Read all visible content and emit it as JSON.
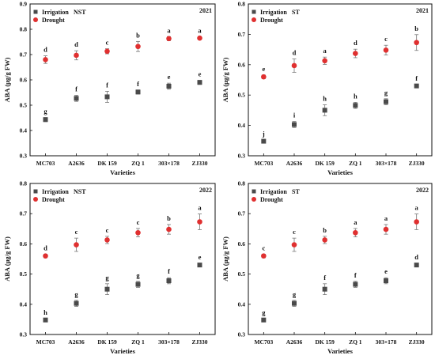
{
  "colors": {
    "irrigation": "#4a4a4a",
    "drought": "#e03030",
    "errorbar": "#777777"
  },
  "chart_data": [
    {
      "type": "scatter",
      "title": "2021",
      "subtitle": "NST",
      "xlabel": "Varieties",
      "ylabel": "ABA (μg/g FW)",
      "categories": [
        "MC703",
        "A2636",
        "DK 159",
        "ZQ 1",
        "303×178",
        "ZJ330"
      ],
      "ylim": [
        0.3,
        0.9
      ],
      "yticks": [
        "0.3",
        "0.4",
        "0.5",
        "0.6",
        "0.7",
        "0.8",
        "0.9"
      ],
      "grid": false,
      "legend_position": "top-left",
      "series": [
        {
          "name": "Irrigation",
          "values": [
            0.443,
            0.527,
            0.533,
            0.552,
            0.575,
            0.59
          ],
          "errors": [
            0.008,
            0.012,
            0.022,
            0.008,
            0.012,
            0.008
          ],
          "labels": [
            "g",
            "f",
            "f",
            "f",
            "e",
            "e"
          ]
        },
        {
          "name": "Drought",
          "values": [
            0.68,
            0.697,
            0.713,
            0.732,
            0.763,
            0.765
          ],
          "errors": [
            0.015,
            0.018,
            0.01,
            0.02,
            0.008,
            0.006
          ],
          "labels": [
            "d",
            "d",
            "c",
            "b",
            "a",
            "a"
          ]
        }
      ]
    },
    {
      "type": "scatter",
      "title": "2021",
      "subtitle": "ST",
      "xlabel": "Varieties",
      "ylabel": "ABA (μg/g FW)",
      "categories": [
        "MC703",
        "A2636",
        "DK 159",
        "ZQ 1",
        "303×178",
        "ZJ330"
      ],
      "ylim": [
        0.3,
        0.8
      ],
      "yticks": [
        "0.3",
        "0.4",
        "0.5",
        "0.6",
        "0.7",
        "0.8"
      ],
      "grid": false,
      "legend_position": "top-left",
      "series": [
        {
          "name": "Irrigation",
          "values": [
            0.348,
            0.403,
            0.45,
            0.466,
            0.478,
            0.53
          ],
          "errors": [
            0.004,
            0.01,
            0.018,
            0.01,
            0.01,
            0.005
          ],
          "labels": [
            "j",
            "i",
            "h",
            "h",
            "g",
            "f"
          ]
        },
        {
          "name": "Drought",
          "values": [
            0.56,
            0.597,
            0.613,
            0.637,
            0.648,
            0.673
          ],
          "errors": [
            0.006,
            0.022,
            0.012,
            0.014,
            0.016,
            0.026
          ],
          "labels": [
            "e",
            "d",
            "a",
            "d",
            "c",
            "b"
          ]
        }
      ]
    },
    {
      "type": "scatter",
      "title": "2022",
      "subtitle": "NST",
      "xlabel": "Varieties",
      "ylabel": "ABA (μg/g FW)",
      "categories": [
        "MC703",
        "A2636",
        "DK 159",
        "ZQ 1",
        "303×178",
        "ZJ330"
      ],
      "ylim": [
        0.3,
        0.8
      ],
      "yticks": [
        "0.3",
        "0.4",
        "0.5",
        "0.6",
        "0.7",
        "0.8"
      ],
      "grid": false,
      "legend_position": "top-left",
      "series": [
        {
          "name": "Irrigation",
          "values": [
            0.348,
            0.403,
            0.45,
            0.466,
            0.478,
            0.53
          ],
          "errors": [
            0.004,
            0.01,
            0.018,
            0.01,
            0.01,
            0.005
          ],
          "labels": [
            "h",
            "g",
            "g",
            "g",
            "f",
            "e"
          ]
        },
        {
          "name": "Drought",
          "values": [
            0.56,
            0.597,
            0.613,
            0.637,
            0.648,
            0.673
          ],
          "errors": [
            0.006,
            0.022,
            0.012,
            0.014,
            0.016,
            0.026
          ],
          "labels": [
            "d",
            "c",
            "c",
            "c",
            "b",
            "a"
          ]
        }
      ]
    },
    {
      "type": "scatter",
      "title": "2022",
      "subtitle": "ST",
      "xlabel": "Varieties",
      "ylabel": "ABA (μg/g FW)",
      "categories": [
        "MC703",
        "A2636",
        "DK 159",
        "ZQ 1",
        "303×178",
        "ZJ330"
      ],
      "ylim": [
        0.3,
        0.8
      ],
      "yticks": [
        "0.3",
        "0.4",
        "0.5",
        "0.6",
        "0.7",
        "0.8"
      ],
      "grid": false,
      "legend_position": "top-left",
      "series": [
        {
          "name": "Irrigation",
          "values": [
            0.348,
            0.403,
            0.45,
            0.466,
            0.478,
            0.53
          ],
          "errors": [
            0.004,
            0.01,
            0.018,
            0.01,
            0.01,
            0.005
          ],
          "labels": [
            "g",
            "g",
            "f",
            "f",
            "e",
            "d"
          ]
        },
        {
          "name": "Drought",
          "values": [
            0.56,
            0.597,
            0.613,
            0.637,
            0.648,
            0.673
          ],
          "errors": [
            0.006,
            0.022,
            0.012,
            0.014,
            0.016,
            0.026
          ],
          "labels": [
            "c",
            "c",
            "b",
            "a",
            "a",
            "a"
          ]
        }
      ]
    }
  ]
}
